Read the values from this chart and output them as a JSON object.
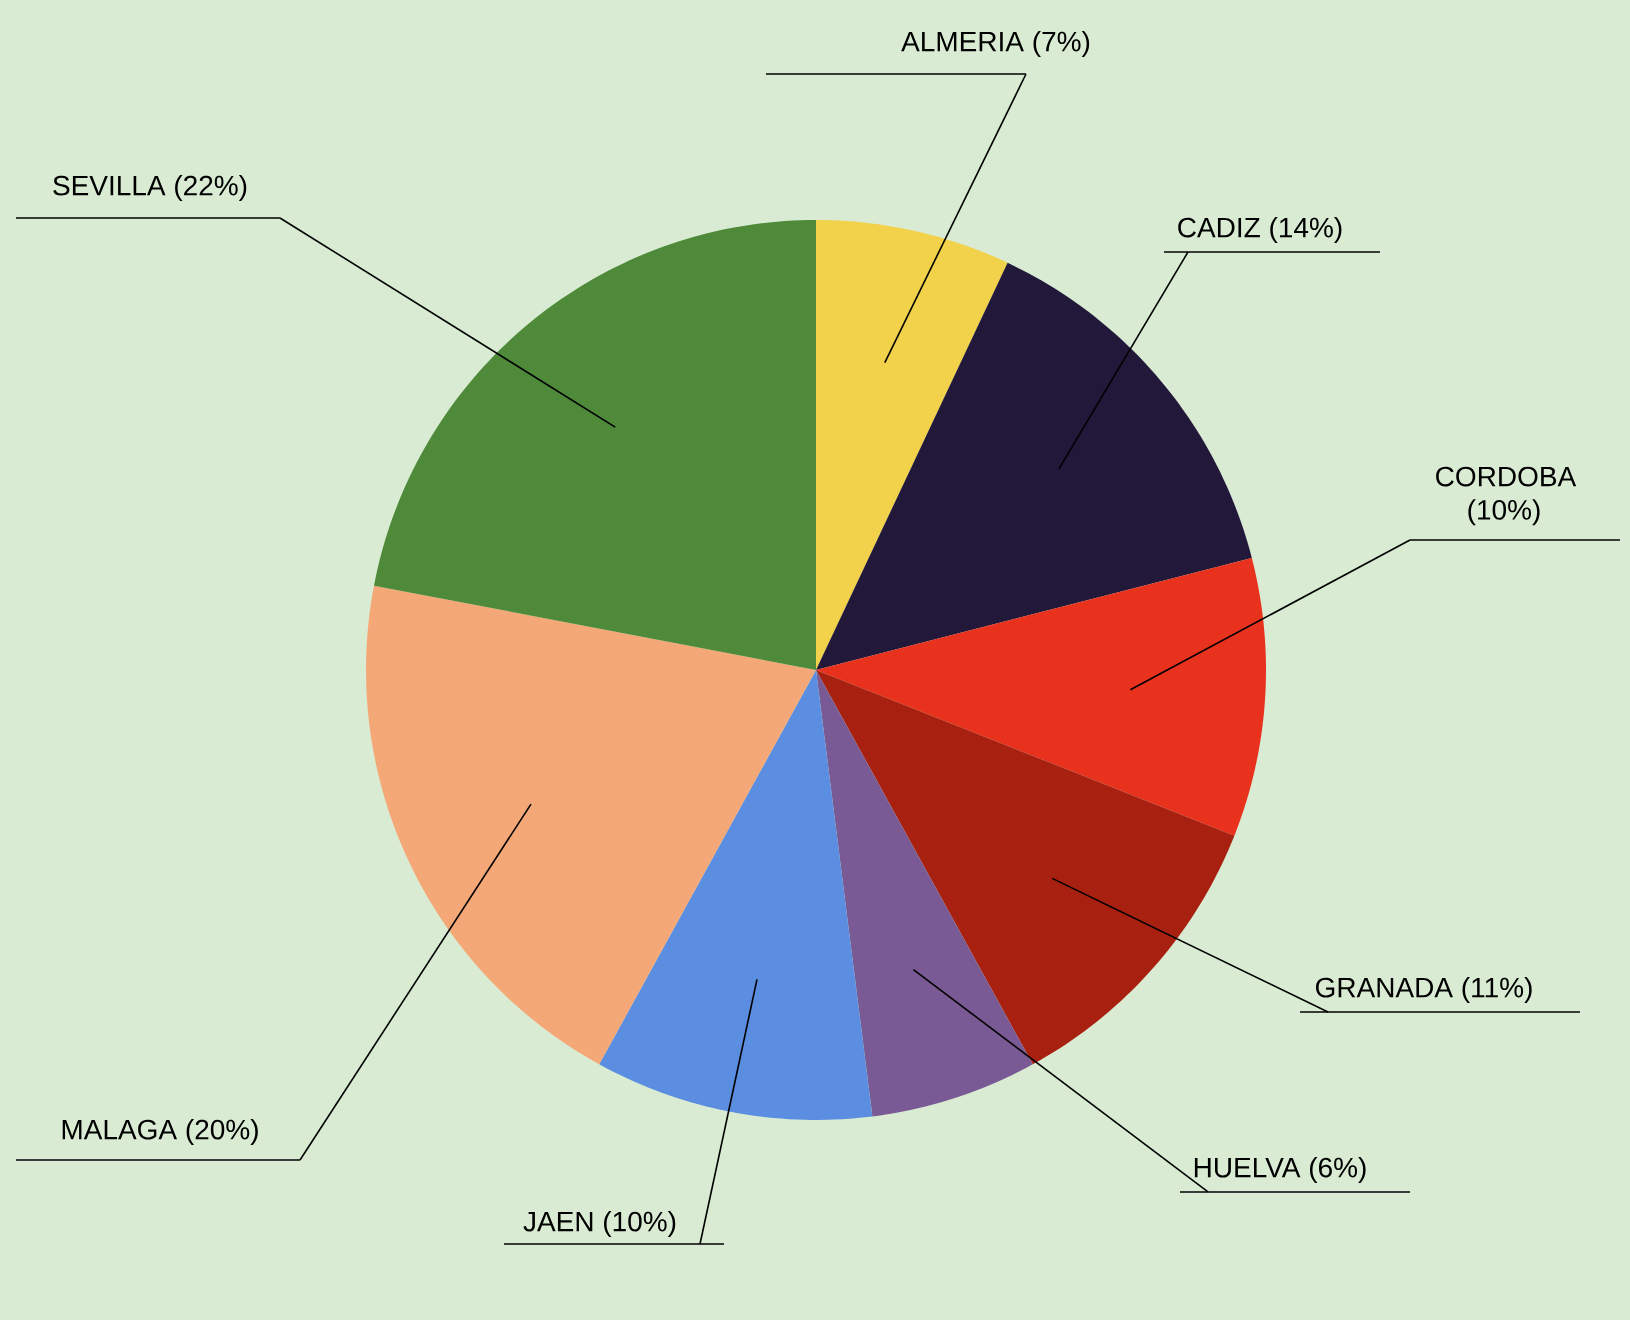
{
  "chart_data": {
    "type": "pie",
    "categories": [
      "ALMERIA (7%)",
      "CADIZ (14%)",
      "CORDOBA (10%)",
      "GRANADA (11%)",
      "HUELVA (6%)",
      "JAEN (10%)",
      "MALAGA (20%)",
      "SEVILLA (22%)"
    ],
    "values": [
      7,
      14,
      10,
      11,
      6,
      10,
      20,
      22
    ],
    "colors": [
      "#f2d24a",
      "#22183a",
      "#e8321e",
      "#a8200f",
      "#7a5a94",
      "#5b8ee0",
      "#f4a878",
      "#4e8a3a"
    ]
  }
}
